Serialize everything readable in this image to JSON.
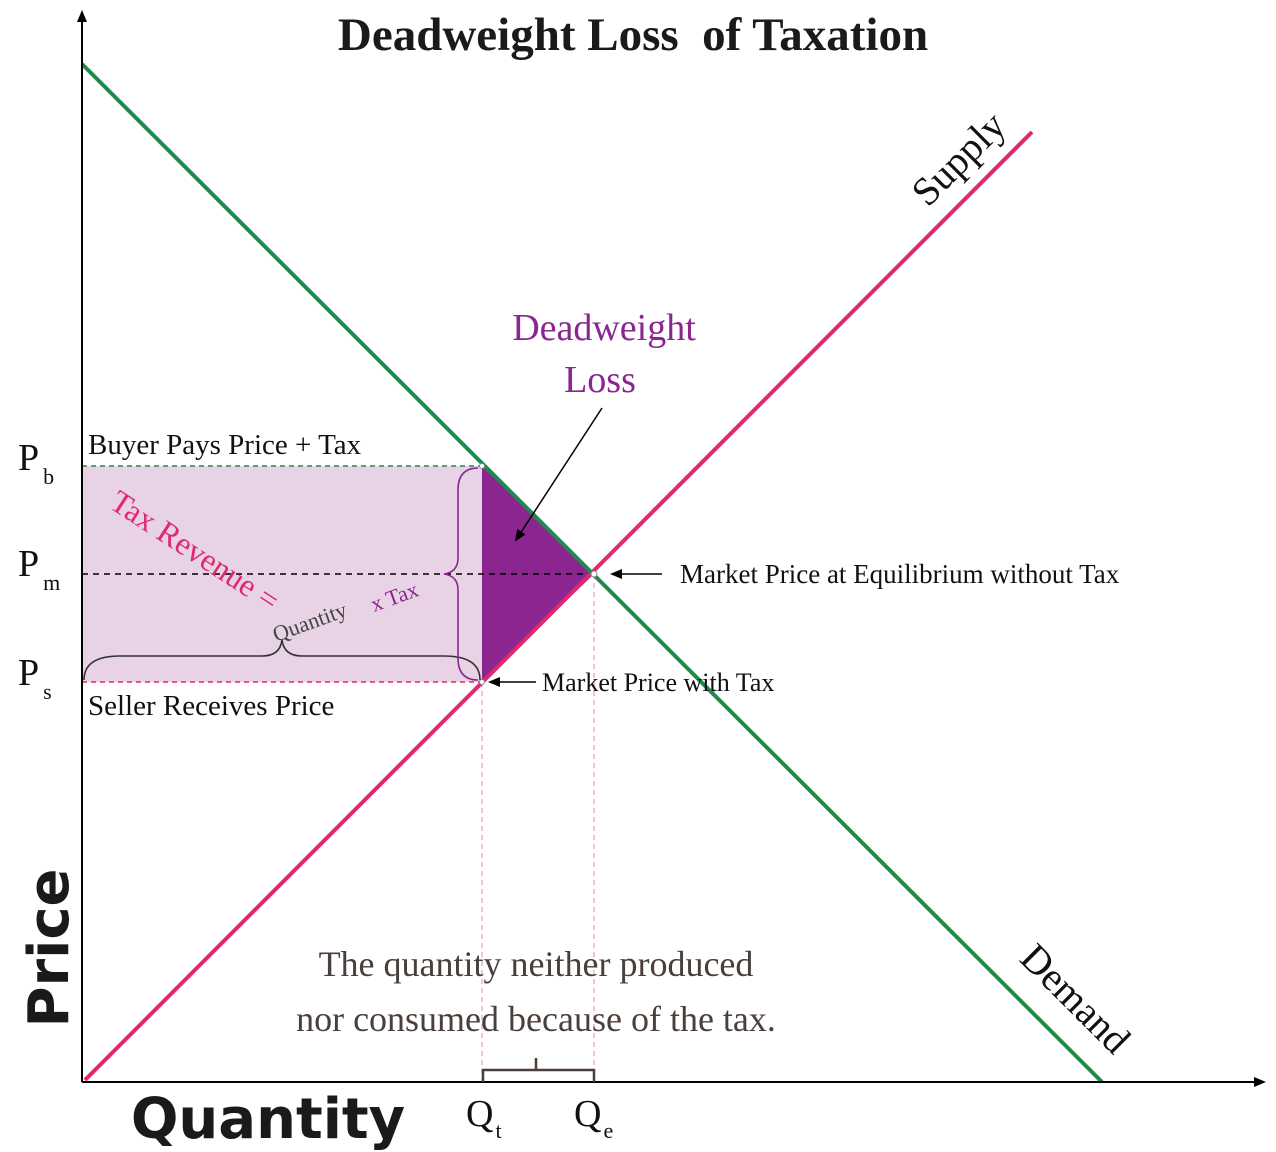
{
  "title": "Deadweight Loss  of Taxation",
  "axes": {
    "y_label": "Price",
    "x_label": "Quantity"
  },
  "curves": {
    "supply": "Supply",
    "demand": "Demand"
  },
  "price_labels": {
    "pb": {
      "main": "P",
      "sub": "b"
    },
    "pm": {
      "main": "P",
      "sub": "m"
    },
    "ps": {
      "main": "P",
      "sub": "s"
    }
  },
  "quantity_labels": {
    "qt": {
      "main": "Q",
      "sub": "t"
    },
    "qe": {
      "main": "Q",
      "sub": "e"
    }
  },
  "annotations": {
    "buyer_pays": "Buyer Pays Price + Tax",
    "seller_receives": "Seller Receives Price",
    "tax_revenue": "Tax Revenue =",
    "quantity": "Quantity",
    "x_tax": "x Tax",
    "deadweight_line1": "Deadweight",
    "deadweight_line2": "Loss",
    "market_price_equilibrium": "Market Price at Equilibrium without Tax",
    "market_price_tax": "Market Price with Tax",
    "note_line1": "The quantity neither produced",
    "note_line2": "nor consumed because of the tax."
  },
  "colors": {
    "supply": "#e0286e",
    "demand": "#1f8a4c",
    "deadweight_fill": "#8b2690",
    "tax_revenue_fill": "#e8d3e6",
    "deadweight_text": "#8b2690",
    "tax_revenue_text": "#e0286e",
    "axis": "#000000"
  }
}
